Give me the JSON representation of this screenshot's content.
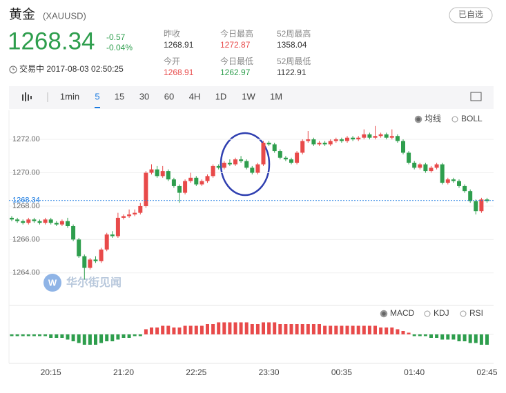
{
  "header": {
    "name": "黄金",
    "symbol": "(XAUUSD)",
    "price": "1268.34",
    "change": "-0.57",
    "change_pct": "-0.04%",
    "status": "交易中 2017-08-03 02:50:25",
    "button": "已自选",
    "stats": [
      {
        "label": "昨收",
        "value": "1268.91"
      },
      {
        "label": "今开",
        "value": "1268.91"
      },
      {
        "label": "今日最高",
        "value": "1272.87"
      },
      {
        "label": "今日最低",
        "value": "1262.97"
      },
      {
        "label": "52周最高",
        "value": "1358.04"
      },
      {
        "label": "52周最低",
        "value": "1122.91"
      }
    ]
  },
  "toolbar": {
    "intervals": [
      "1min",
      "5",
      "15",
      "30",
      "60",
      "4H",
      "1D",
      "1W",
      "1M"
    ],
    "active": 1
  },
  "watermark": "华尔街见闻",
  "chart_data": [
    {
      "type": "candlestick",
      "legend": [
        "均线",
        "BOLL"
      ],
      "up_color": "#e84a4a",
      "down_color": "#2e9e4d",
      "ylim": [
        1262.05,
        1273.74
      ],
      "yticks": [
        {
          "value": 1264,
          "label": "1264.00"
        },
        {
          "value": 1266,
          "label": "1266.00"
        },
        {
          "value": 1268,
          "label": "1268.00"
        },
        {
          "value": 1270,
          "label": "1270.00"
        },
        {
          "value": 1272,
          "label": "1272.00"
        }
      ],
      "price_line": 1268.34,
      "categories": [
        null,
        null,
        null,
        null,
        null,
        null,
        null,
        "20:15",
        null,
        null,
        null,
        null,
        null,
        null,
        null,
        null,
        null,
        null,
        null,
        null,
        "21:20",
        null,
        null,
        null,
        null,
        null,
        null,
        null,
        null,
        null,
        null,
        null,
        null,
        "22:25",
        null,
        null,
        null,
        null,
        null,
        null,
        null,
        null,
        null,
        null,
        null,
        null,
        "23:30",
        null,
        null,
        null,
        null,
        null,
        null,
        null,
        null,
        null,
        null,
        null,
        null,
        "00:35",
        null,
        null,
        null,
        null,
        null,
        null,
        null,
        null,
        null,
        null,
        null,
        null,
        "01:40",
        null,
        null,
        null,
        null,
        null,
        null,
        null,
        null,
        null,
        null,
        null,
        null,
        "02:45"
      ],
      "open": [
        1267.3,
        1267.2,
        1267.1,
        1267.0,
        1267.2,
        1267.1,
        1267.0,
        1267.2,
        1267.0,
        1266.9,
        1267.1,
        1266.8,
        1266.0,
        1265.0,
        1264.3,
        1264.8,
        1264.7,
        1265.4,
        1266.3,
        1266.2,
        1267.3,
        1267.4,
        1267.5,
        1267.6,
        1268.0,
        1270.0,
        1270.2,
        1269.8,
        1270.1,
        1269.6,
        1269.2,
        1268.8,
        1269.5,
        1269.7,
        1269.3,
        1269.5,
        1269.8,
        1270.4,
        1270.3,
        1270.6,
        1270.5,
        1270.8,
        1270.7,
        1270.3,
        1270.0,
        1270.5,
        1271.8,
        1271.7,
        1271.3,
        1270.9,
        1270.8,
        1270.6,
        1271.2,
        1271.9,
        1272.0,
        1271.7,
        1271.8,
        1271.7,
        1271.9,
        1272.0,
        1271.9,
        1272.1,
        1272.0,
        1272.1,
        1272.3,
        1272.1,
        1272.2,
        1272.3,
        1272.1,
        1272.2,
        1271.9,
        1271.2,
        1270.6,
        1270.3,
        1270.5,
        1270.1,
        1270.3,
        1270.5,
        1269.4,
        1269.6,
        1269.5,
        1269.2,
        1268.9,
        1268.3,
        1267.7,
        1268.4
      ],
      "high": [
        1267.4,
        1267.3,
        1267.2,
        1267.3,
        1267.3,
        1267.2,
        1267.3,
        1267.3,
        1267.1,
        1267.2,
        1267.3,
        1266.9,
        1266.1,
        1265.1,
        1264.9,
        1265.0,
        1265.5,
        1266.4,
        1266.5,
        1267.6,
        1267.5,
        1267.8,
        1267.8,
        1268.2,
        1270.1,
        1270.5,
        1270.4,
        1270.4,
        1270.2,
        1269.7,
        1269.3,
        1269.6,
        1270.0,
        1269.8,
        1269.6,
        1269.9,
        1270.5,
        1270.5,
        1270.7,
        1270.8,
        1270.9,
        1271.0,
        1270.8,
        1270.4,
        1270.6,
        1271.9,
        1271.9,
        1271.8,
        1271.4,
        1271.0,
        1270.9,
        1271.3,
        1272.0,
        1272.5,
        1272.1,
        1271.9,
        1271.9,
        1272.0,
        1272.1,
        1272.1,
        1272.2,
        1272.2,
        1272.2,
        1272.6,
        1272.4,
        1272.8,
        1272.4,
        1272.4,
        1272.6,
        1272.3,
        1272.0,
        1271.3,
        1270.7,
        1270.6,
        1270.6,
        1270.4,
        1270.6,
        1270.6,
        1269.7,
        1269.7,
        1269.6,
        1269.3,
        1269.0,
        1268.4,
        1268.5,
        1268.5
      ],
      "low": [
        1267.1,
        1267.0,
        1266.9,
        1266.9,
        1267.0,
        1266.9,
        1266.9,
        1266.9,
        1266.8,
        1266.8,
        1266.7,
        1265.9,
        1264.9,
        1263.6,
        1264.2,
        1264.6,
        1264.6,
        1265.3,
        1266.1,
        1266.1,
        1267.2,
        1267.3,
        1267.4,
        1267.5,
        1267.9,
        1269.9,
        1269.7,
        1269.7,
        1269.5,
        1269.1,
        1268.2,
        1268.7,
        1269.4,
        1269.2,
        1269.2,
        1269.4,
        1269.7,
        1270.2,
        1270.2,
        1270.4,
        1270.4,
        1270.6,
        1270.2,
        1269.9,
        1269.9,
        1270.4,
        1271.6,
        1271.2,
        1270.8,
        1270.7,
        1270.5,
        1270.5,
        1271.1,
        1271.8,
        1271.6,
        1271.6,
        1271.6,
        1271.6,
        1271.8,
        1271.8,
        1271.8,
        1271.9,
        1271.9,
        1272.0,
        1272.0,
        1272.0,
        1272.1,
        1272.0,
        1272.0,
        1271.8,
        1271.1,
        1270.5,
        1270.2,
        1270.2,
        1270.0,
        1270.0,
        1270.2,
        1269.3,
        1269.3,
        1269.4,
        1269.1,
        1268.8,
        1268.2,
        1267.5,
        1267.6,
        1268.2
      ],
      "close": [
        1267.2,
        1267.1,
        1267.0,
        1267.2,
        1267.1,
        1267.0,
        1267.2,
        1267.0,
        1266.9,
        1267.1,
        1266.8,
        1266.0,
        1265.0,
        1264.3,
        1264.8,
        1264.7,
        1265.4,
        1266.3,
        1266.2,
        1267.3,
        1267.4,
        1267.5,
        1267.6,
        1268.0,
        1270.0,
        1270.2,
        1269.8,
        1270.1,
        1269.6,
        1269.2,
        1268.8,
        1269.5,
        1269.7,
        1269.3,
        1269.5,
        1269.8,
        1270.4,
        1270.3,
        1270.6,
        1270.5,
        1270.8,
        1270.7,
        1270.3,
        1270.0,
        1270.5,
        1271.8,
        1271.7,
        1271.3,
        1270.9,
        1270.8,
        1270.6,
        1271.2,
        1271.9,
        1272.0,
        1271.7,
        1271.8,
        1271.7,
        1271.9,
        1272.0,
        1271.9,
        1272.1,
        1272.0,
        1272.1,
        1272.3,
        1272.1,
        1272.2,
        1272.3,
        1272.1,
        1272.2,
        1271.9,
        1271.2,
        1270.6,
        1270.3,
        1270.5,
        1270.1,
        1270.3,
        1270.5,
        1269.4,
        1269.6,
        1269.5,
        1269.2,
        1268.9,
        1268.3,
        1267.7,
        1268.4,
        1268.3
      ]
    },
    {
      "type": "macd",
      "legend": [
        "MACD",
        "KDJ",
        "RSI"
      ],
      "up_color": "#e84a4a",
      "down_color": "#2e9e4d",
      "ylim": [
        -1,
        1
      ],
      "values": [
        -0.1,
        -0.1,
        -0.1,
        -0.1,
        -0.1,
        -0.1,
        -0.1,
        -0.2,
        -0.2,
        -0.2,
        -0.3,
        -0.4,
        -0.5,
        -0.6,
        -0.6,
        -0.6,
        -0.5,
        -0.4,
        -0.4,
        -0.3,
        -0.2,
        -0.2,
        -0.1,
        -0.1,
        0.3,
        0.4,
        0.4,
        0.5,
        0.5,
        0.4,
        0.4,
        0.5,
        0.5,
        0.5,
        0.5,
        0.6,
        0.6,
        0.7,
        0.7,
        0.7,
        0.7,
        0.7,
        0.7,
        0.6,
        0.6,
        0.7,
        0.7,
        0.7,
        0.6,
        0.6,
        0.6,
        0.6,
        0.6,
        0.6,
        0.6,
        0.6,
        0.5,
        0.5,
        0.5,
        0.5,
        0.5,
        0.5,
        0.5,
        0.5,
        0.5,
        0.5,
        0.4,
        0.4,
        0.4,
        0.3,
        0.2,
        0.1,
        -0.1,
        -0.1,
        -0.1,
        -0.2,
        -0.2,
        -0.3,
        -0.3,
        -0.3,
        -0.4,
        -0.4,
        -0.5,
        -0.5,
        -0.6,
        -0.6
      ]
    }
  ]
}
